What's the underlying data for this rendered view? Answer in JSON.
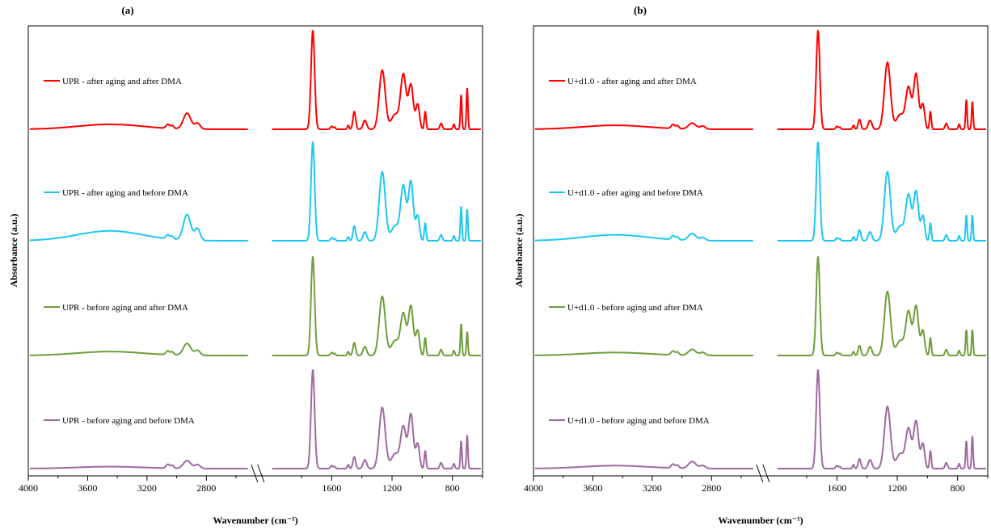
{
  "chart_data": [
    {
      "type": "line",
      "panel_label": "(a)",
      "xlabel": "Wavenumber (cm⁻¹)",
      "ylabel": "Absorbance (a.u.)",
      "x_reversed": true,
      "axis_break": true,
      "xticks": [
        "4000",
        "3600",
        "3200",
        "2800",
        "1600",
        "1200",
        "800"
      ],
      "series": [
        {
          "name": "UPR - after aging and after DMA",
          "color": "#ff0000",
          "peaks": {
            "broad_oh": 0.05,
            "ch_2920": 0.16,
            "ch_2850": 0.06,
            "co_1720": 1.0,
            "1450": 0.18,
            "1260": 0.6,
            "1120": 0.55,
            "1070": 0.45,
            "740": 0.35,
            "700": 0.42
          }
        },
        {
          "name": "UPR - after aging and before DMA",
          "color": "#1ec8f0",
          "peaks": {
            "broad_oh": 0.1,
            "ch_2920": 0.26,
            "ch_2850": 0.12,
            "co_1720": 1.0,
            "1450": 0.15,
            "1260": 0.7,
            "1120": 0.55,
            "1070": 0.6,
            "740": 0.35,
            "700": 0.32
          }
        },
        {
          "name": "UPR - before aging and after DMA",
          "color": "#6e9e3c",
          "peaks": {
            "broad_oh": 0.04,
            "ch_2920": 0.12,
            "ch_2850": 0.05,
            "co_1720": 1.0,
            "1450": 0.13,
            "1260": 0.6,
            "1120": 0.42,
            "1070": 0.5,
            "740": 0.32,
            "700": 0.24
          }
        },
        {
          "name": "UPR - before aging and before DMA",
          "color": "#9e6aa0",
          "peaks": {
            "broad_oh": 0.02,
            "ch_2920": 0.08,
            "ch_2850": 0.04,
            "co_1720": 1.0,
            "1450": 0.12,
            "1260": 0.62,
            "1120": 0.42,
            "1070": 0.55,
            "740": 0.28,
            "700": 0.34
          }
        }
      ]
    },
    {
      "type": "line",
      "panel_label": "(b)",
      "xlabel": "Wavenumber (cm⁻¹)",
      "ylabel": "Absorbance (a.u.)",
      "x_reversed": true,
      "axis_break": true,
      "xticks": [
        "4000",
        "3600",
        "3200",
        "2800",
        "1600",
        "1200",
        "800"
      ],
      "series": [
        {
          "name": "U+d1.0 - after aging and after DMA",
          "color": "#ff0000",
          "peaks": {
            "broad_oh": 0.04,
            "ch_2920": 0.06,
            "ch_2850": 0.03,
            "co_1720": 1.0,
            "1450": 0.1,
            "1260": 0.68,
            "1120": 0.42,
            "1070": 0.56,
            "740": 0.3,
            "700": 0.28
          }
        },
        {
          "name": "U+d1.0 - after aging and before DMA",
          "color": "#1ec8f0",
          "peaks": {
            "broad_oh": 0.06,
            "ch_2920": 0.07,
            "ch_2850": 0.03,
            "co_1720": 1.0,
            "1450": 0.11,
            "1260": 0.7,
            "1120": 0.46,
            "1070": 0.5,
            "740": 0.26,
            "700": 0.26
          }
        },
        {
          "name": "U+d1.0 - before aging and after DMA",
          "color": "#6e9e3c",
          "peaks": {
            "broad_oh": 0.03,
            "ch_2920": 0.06,
            "ch_2850": 0.03,
            "co_1720": 1.0,
            "1450": 0.1,
            "1260": 0.65,
            "1120": 0.44,
            "1070": 0.5,
            "740": 0.26,
            "700": 0.26
          }
        },
        {
          "name": "U+d1.0 - before aging and before DMA",
          "color": "#9e6aa0",
          "peaks": {
            "broad_oh": 0.03,
            "ch_2920": 0.07,
            "ch_2850": 0.03,
            "co_1720": 1.0,
            "1450": 0.1,
            "1260": 0.63,
            "1120": 0.4,
            "1070": 0.48,
            "740": 0.28,
            "700": 0.33
          }
        }
      ]
    }
  ]
}
